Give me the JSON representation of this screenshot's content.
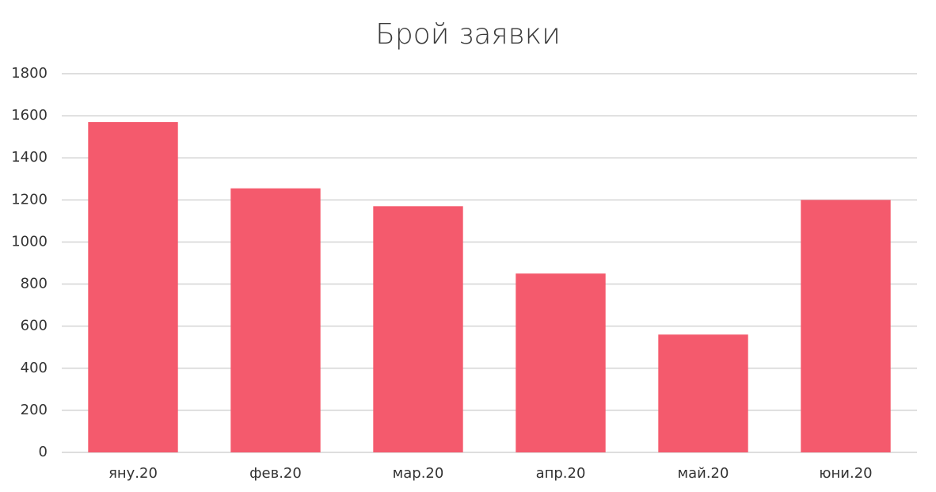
{
  "chart_data": {
    "type": "bar",
    "title": "Брой заявки",
    "categories": [
      "яну.20",
      "фев.20",
      "мар.20",
      "апр.20",
      "май.20",
      "юни.20"
    ],
    "values": [
      1570,
      1255,
      1170,
      850,
      560,
      1200
    ],
    "color": "#f45a6d",
    "ylim": [
      0,
      1800
    ],
    "yticks": [
      0,
      200,
      400,
      600,
      800,
      1000,
      1200,
      1400,
      1600,
      1800
    ],
    "grid": true
  }
}
